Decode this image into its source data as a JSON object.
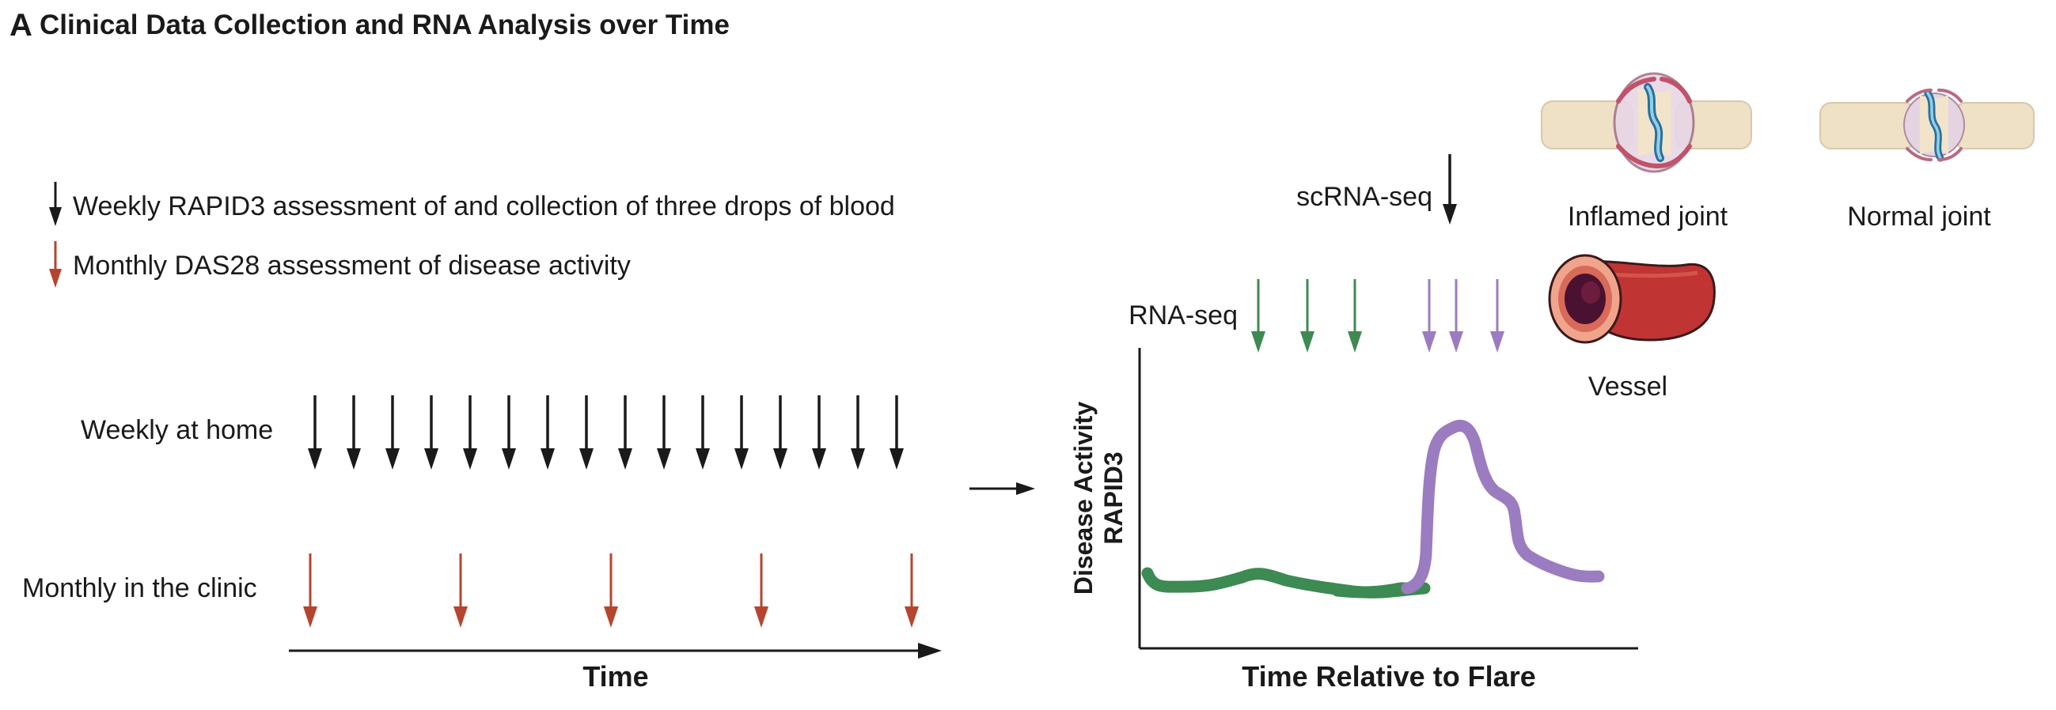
{
  "panel": {
    "letter": "A",
    "title": "Clinical Data Collection and RNA Analysis over Time"
  },
  "legend": {
    "weekly": "Weekly RAPID3 assessment of and collection of three drops of blood",
    "monthly": "Monthly DAS28 assessment of disease activity"
  },
  "timeline": {
    "weekly_label": "Weekly at home",
    "monthly_label": "Monthly in the clinic",
    "axis_label": "Time",
    "weekly_count": 16,
    "monthly_count": 5
  },
  "flare_plot": {
    "scrna_label": "scRNA-seq",
    "rnaseq_label": "RNA-seq",
    "ylabel_line1": "Disease Activity",
    "ylabel_line2": "RAPID3",
    "xlabel": "Time Relative to Flare"
  },
  "illustrations": {
    "inflamed_joint": "Inflamed joint",
    "normal_joint": "Normal joint",
    "vessel": "Vessel"
  },
  "colors": {
    "weekly_arrow": "#1a1a1a",
    "monthly_arrow": "#b5452f",
    "baseline": "#3d8a52",
    "flare": "#9b7cc0"
  }
}
